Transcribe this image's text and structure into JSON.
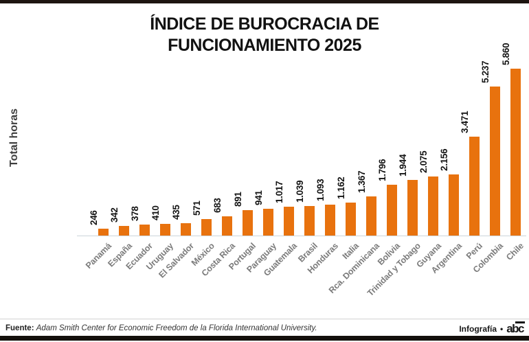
{
  "page": {
    "title_line1": "ÍNDICE DE BUROCRACIA DE",
    "title_line2": "FUNCIONAMIENTO 2025"
  },
  "chart_data": {
    "type": "bar",
    "title": "ÍNDICE DE BUROCRACIA DE FUNCIONAMIENTO 2025",
    "xlabel": "",
    "ylabel": "Total horas",
    "ylim": [
      0,
      5860
    ],
    "grid": false,
    "legend": "none",
    "bar_color": "#e8720e",
    "categories": [
      "Panamá",
      "España",
      "Ecuador",
      "Uruguay",
      "El Salvador",
      "México",
      "Costa Rica",
      "Portugal",
      "Paraguay",
      "Guatemala",
      "Brasil",
      "Honduras",
      "Italia",
      "Rca. Dominicana",
      "Bolivia",
      "Trinidad y Tobago",
      "Guyana",
      "Argentina",
      "Perú",
      "Colombia",
      "Chile"
    ],
    "values": [
      246,
      342,
      378,
      410,
      435,
      571,
      683,
      891,
      941,
      1017,
      1039,
      1093,
      1162,
      1367,
      1796,
      1944,
      2075,
      2156,
      3471,
      5237,
      5860
    ],
    "value_labels": [
      "246",
      "342",
      "378",
      "410",
      "435",
      "571",
      "683",
      "891",
      "941",
      "1.017",
      "1.039",
      "1.093",
      "1.162",
      "1.367",
      "1.796",
      "1.944",
      "2.075",
      "2.156",
      "3.471",
      "5.237",
      "5.860"
    ]
  },
  "footer": {
    "source_label": "Fuente:",
    "source_text": "Adam Smith Center for Economic Freedom de la Florida International University.",
    "credit_label": "Infografía",
    "credit_bullet": "•",
    "brand_name": "abc"
  }
}
